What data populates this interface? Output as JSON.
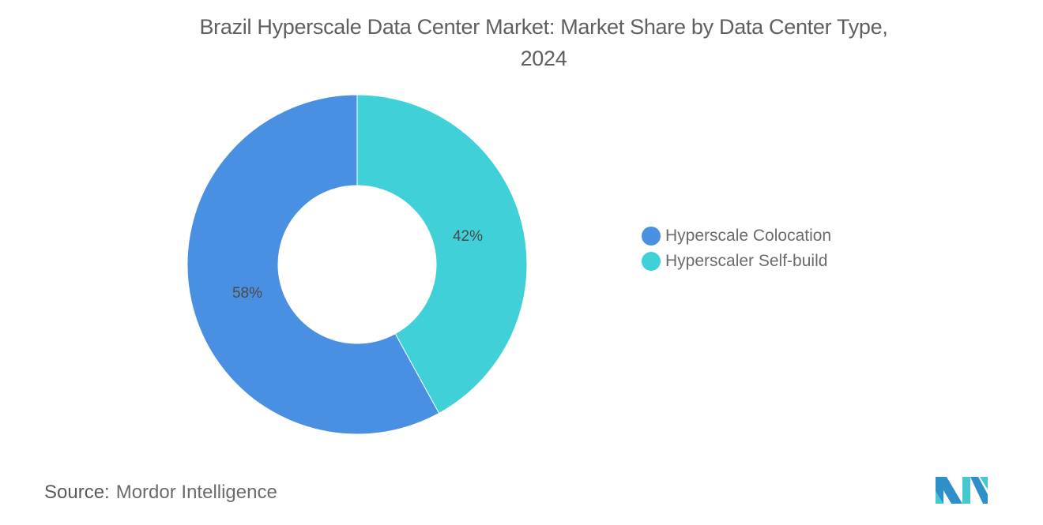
{
  "title": "Brazil Hyperscale Data Center Market: Market Share by Data Center Type,",
  "title_line2": "2024",
  "source_label": "Source:",
  "source_value": "Mordor Intelligence",
  "legend": [
    {
      "label": "Hyperscale Colocation",
      "color": "#4a90e2"
    },
    {
      "label": "Hyperscaler Self-build",
      "color": "#40d0d8"
    }
  ],
  "slice_labels": {
    "colocation": "58%",
    "selfbuild": "42%"
  },
  "chart_data": {
    "type": "pie",
    "variant": "donut",
    "title": "Brazil Hyperscale Data Center Market: Market Share by Data Center Type, 2024",
    "categories": [
      "Hyperscale Colocation",
      "Hyperscaler Self-build"
    ],
    "values": [
      58,
      42
    ],
    "unit": "%",
    "colors": [
      "#4a90e2",
      "#40d0d8"
    ],
    "legend_position": "right"
  }
}
